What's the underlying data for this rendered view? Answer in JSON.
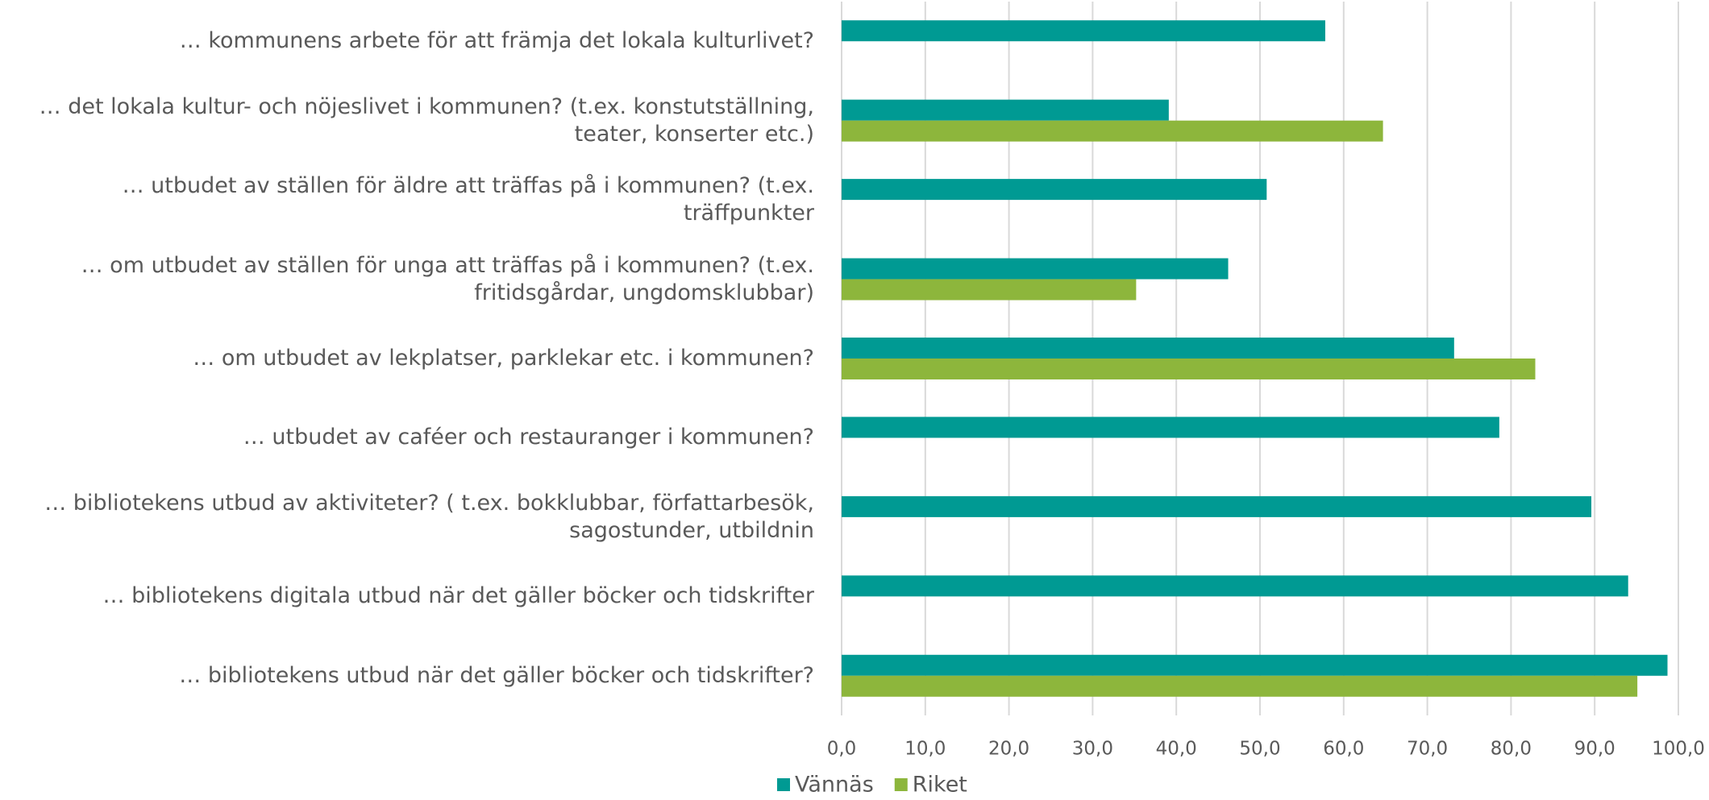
{
  "chart_data": {
    "type": "barh",
    "categories": [
      "… kommunens arbete för att främja det lokala kulturlivet?",
      "… det lokala kultur- och nöjeslivet i kommunen? (t.ex. konstutställning, teater, konserter etc.)",
      "… utbudet av ställen för äldre att träffas på i kommunen? (t.ex. träffpunkter",
      "… om utbudet av ställen för unga att träffas på i kommunen? (t.ex. fritidsgårdar, ungdomsklubbar)",
      "… om utbudet av lekplatser, parklekar etc. i kommunen?",
      "… utbudet av caféer och restauranger i kommunen?",
      "… bibliotekens utbud av aktiviteter? ( t.ex. bokklubbar, författarbesök, sagostunder, utbildnin",
      "… bibliotekens digitala utbud när det gäller böcker och tidskrifter",
      "… bibliotekens utbud när det gäller böcker och tidskrifter?"
    ],
    "series": [
      {
        "name": "Vännäs",
        "color": "#009a93",
        "values": [
          57.8,
          39.1,
          50.8,
          46.2,
          73.2,
          78.6,
          89.6,
          94.0,
          98.7
        ]
      },
      {
        "name": "Riket",
        "color": "#8db63c",
        "values": [
          null,
          64.7,
          null,
          35.2,
          82.9,
          null,
          null,
          null,
          95.1
        ]
      }
    ],
    "xlim": [
      0,
      100
    ],
    "xticks": [
      {
        "value": 0,
        "label": "0,0"
      },
      {
        "value": 10,
        "label": "10,0"
      },
      {
        "value": 20,
        "label": "20,0"
      },
      {
        "value": 30,
        "label": "30,0"
      },
      {
        "value": 40,
        "label": "40,0"
      },
      {
        "value": 50,
        "label": "50,0"
      },
      {
        "value": 60,
        "label": "60,0"
      },
      {
        "value": 70,
        "label": "70,0"
      },
      {
        "value": 80,
        "label": "80,0"
      },
      {
        "value": 90,
        "label": "90,0"
      },
      {
        "value": 100,
        "label": "100,0"
      }
    ],
    "grid": true,
    "legend": "bottom"
  }
}
